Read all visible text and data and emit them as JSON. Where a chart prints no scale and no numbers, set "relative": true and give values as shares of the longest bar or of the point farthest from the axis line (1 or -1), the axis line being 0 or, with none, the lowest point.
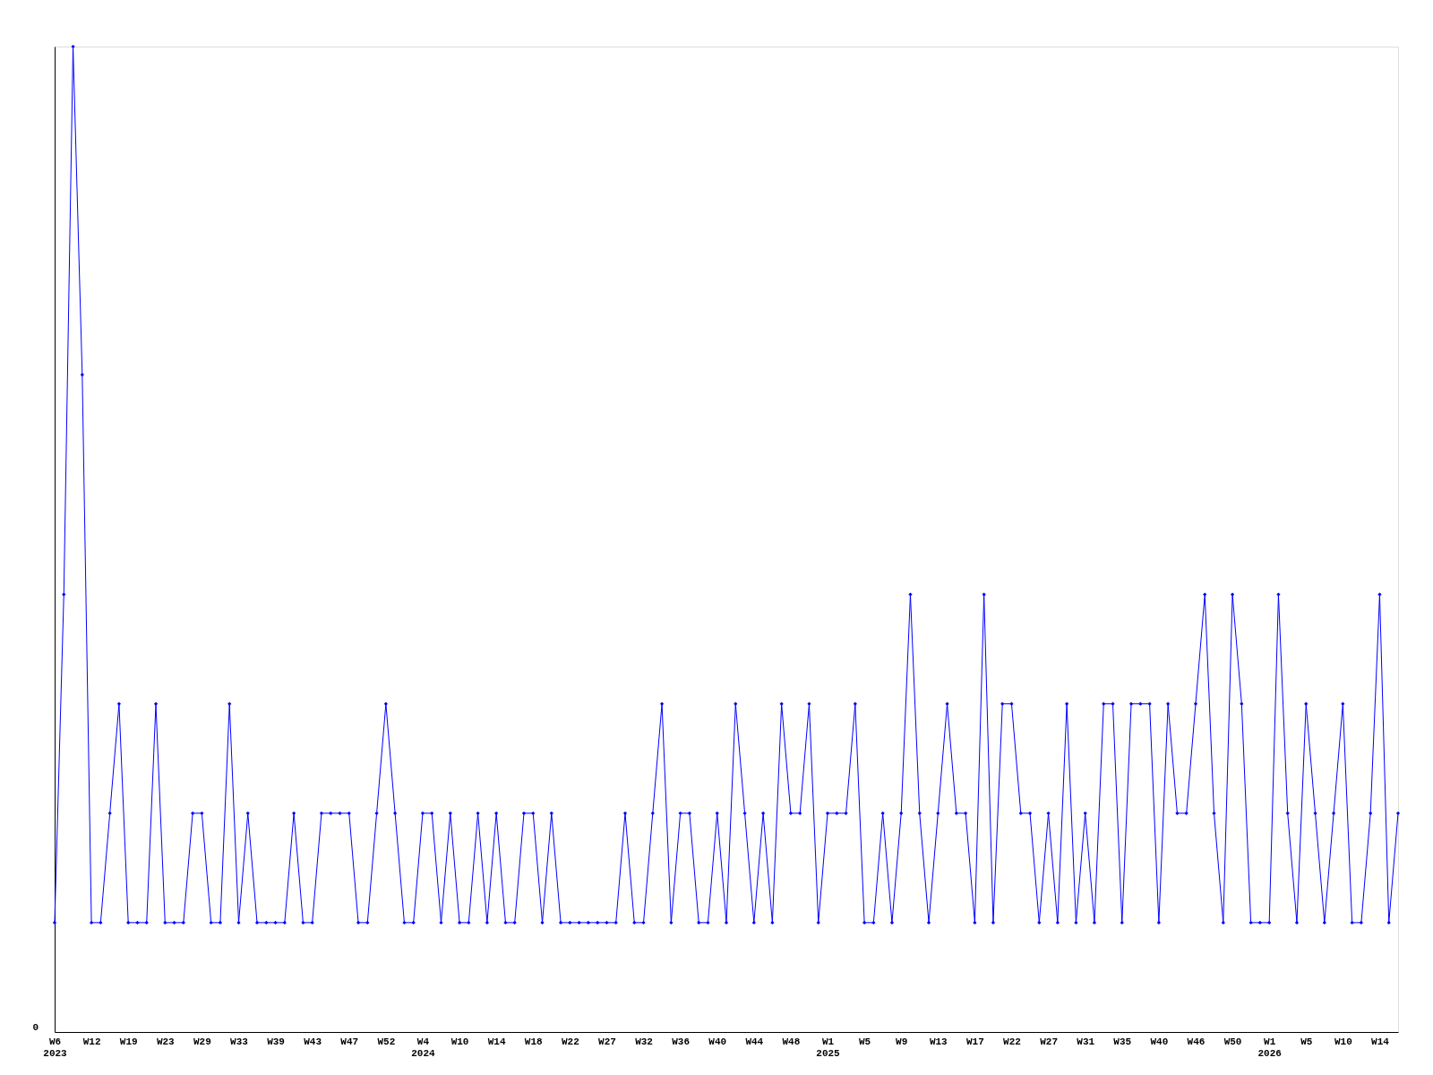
{
  "chart_data": {
    "type": "line",
    "relative": true,
    "marker": "diamond",
    "line_style": "solid",
    "grid": false,
    "annotations": [
      "0"
    ],
    "categories": [
      "W6\n2023",
      null,
      null,
      null,
      "W12",
      null,
      null,
      null,
      "W19",
      null,
      null,
      null,
      "W23",
      null,
      null,
      null,
      "W29",
      null,
      null,
      null,
      "W33",
      null,
      null,
      null,
      "W39",
      null,
      null,
      null,
      "W43",
      null,
      null,
      null,
      "W47",
      null,
      null,
      null,
      "W52",
      null,
      null,
      null,
      "W4\n2024",
      null,
      null,
      null,
      "W10",
      null,
      null,
      null,
      "W14",
      null,
      null,
      null,
      "W18",
      null,
      null,
      null,
      "W22",
      null,
      null,
      null,
      "W27",
      null,
      null,
      null,
      "W32",
      null,
      null,
      null,
      "W36",
      null,
      null,
      null,
      "W40",
      null,
      null,
      null,
      "W44",
      null,
      null,
      null,
      "W48",
      null,
      null,
      null,
      "W1\n2025",
      null,
      null,
      null,
      "W5",
      null,
      null,
      null,
      "W9",
      null,
      null,
      null,
      "W13",
      null,
      null,
      null,
      "W17",
      null,
      null,
      null,
      "W22",
      null,
      null,
      null,
      "W27",
      null,
      null,
      null,
      "W31",
      null,
      null,
      null,
      "W35",
      null,
      null,
      null,
      "W40",
      null,
      null,
      null,
      "W46",
      null,
      null,
      null,
      "W50",
      null,
      null,
      null,
      "W1\n2026",
      null,
      null,
      null,
      "W5",
      null,
      null,
      null,
      "W10",
      null,
      null,
      null,
      "W14",
      null,
      null
    ],
    "series": [
      {
        "color": "#0000ff",
        "values": [
          0.111,
          0.444,
          1,
          0.667,
          0.111,
          0.111,
          0.222,
          0.333,
          0.111,
          0.111,
          0.111,
          0.333,
          0.111,
          0.111,
          0.111,
          0.222,
          0.222,
          0.111,
          0.111,
          0.333,
          0.111,
          0.222,
          0.111,
          0.111,
          0.111,
          0.111,
          0.222,
          0.111,
          0.111,
          0.222,
          0.222,
          0.222,
          0.222,
          0.111,
          0.111,
          0.222,
          0.333,
          0.222,
          0.111,
          0.111,
          0.222,
          0.222,
          0.111,
          0.222,
          0.111,
          0.111,
          0.222,
          0.111,
          0.222,
          0.111,
          0.111,
          0.222,
          0.222,
          0.111,
          0.222,
          0.111,
          0.111,
          0.111,
          0.111,
          0.111,
          0.111,
          0.111,
          0.222,
          0.111,
          0.111,
          0.222,
          0.333,
          0.111,
          0.222,
          0.222,
          0.111,
          0.111,
          0.222,
          0.111,
          0.333,
          0.222,
          0.111,
          0.222,
          0.111,
          0.333,
          0.222,
          0.222,
          0.333,
          0.111,
          0.222,
          0.222,
          0.222,
          0.333,
          0.111,
          0.111,
          0.222,
          0.111,
          0.222,
          0.444,
          0.222,
          0.111,
          0.222,
          0.333,
          0.222,
          0.222,
          0.111,
          0.444,
          0.111,
          0.333,
          0.333,
          0.222,
          0.222,
          0.111,
          0.222,
          0.111,
          0.333,
          0.111,
          0.222,
          0.111,
          0.333,
          0.333,
          0.111,
          0.333,
          0.333,
          0.333,
          0.111,
          0.333,
          0.222,
          0.222,
          0.333,
          0.444,
          0.222,
          0.111,
          0.444,
          0.333,
          0.111,
          0.111,
          0.111,
          0.444,
          0.222,
          0.111,
          0.333,
          0.222,
          0.111,
          0.222,
          0.333,
          0.111,
          0.111,
          0.222,
          0.444,
          0.111,
          0.222
        ]
      }
    ]
  }
}
